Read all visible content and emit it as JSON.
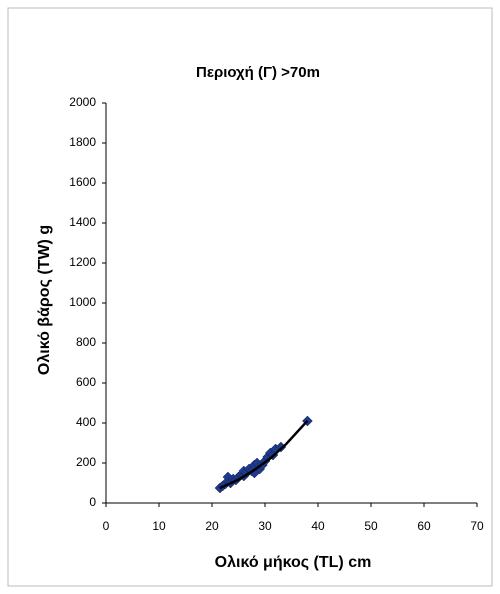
{
  "chart_data": {
    "type": "scatter",
    "title": "Περιοχή (Γ) >70m",
    "x_label": "Ολικό μήκος (TL) cm",
    "y_label": "Ολικό βάρος (TW) g",
    "xlim": [
      0,
      70
    ],
    "xticks": [
      0,
      10,
      20,
      30,
      40,
      50,
      60,
      70
    ],
    "ylim": [
      0,
      2000
    ],
    "yticks": [
      0,
      200,
      400,
      600,
      800,
      1000,
      1200,
      1400,
      1600,
      1800,
      2000
    ],
    "grid": false,
    "series": [
      {
        "color": "#1f3a8a",
        "marker": "diamond",
        "x": [
          21.5,
          22,
          22.5,
          23,
          23,
          23.5,
          24,
          24.5,
          25,
          25.5,
          26,
          26,
          26.5,
          27,
          27.5,
          28,
          28,
          28.5,
          29,
          29.5,
          30,
          30.5,
          31,
          31.5,
          32,
          33,
          38
        ],
        "values": [
          75,
          85,
          95,
          110,
          130,
          100,
          120,
          115,
          130,
          140,
          135,
          160,
          150,
          170,
          160,
          190,
          150,
          200,
          170,
          190,
          210,
          230,
          250,
          240,
          270,
          280,
          410
        ]
      },
      {
        "color": "#000000",
        "marker": "line",
        "x": [
          21.5,
          25,
          28,
          31,
          34,
          38
        ],
        "values": [
          75,
          117,
          165,
          223,
          295,
          411
        ]
      }
    ]
  }
}
